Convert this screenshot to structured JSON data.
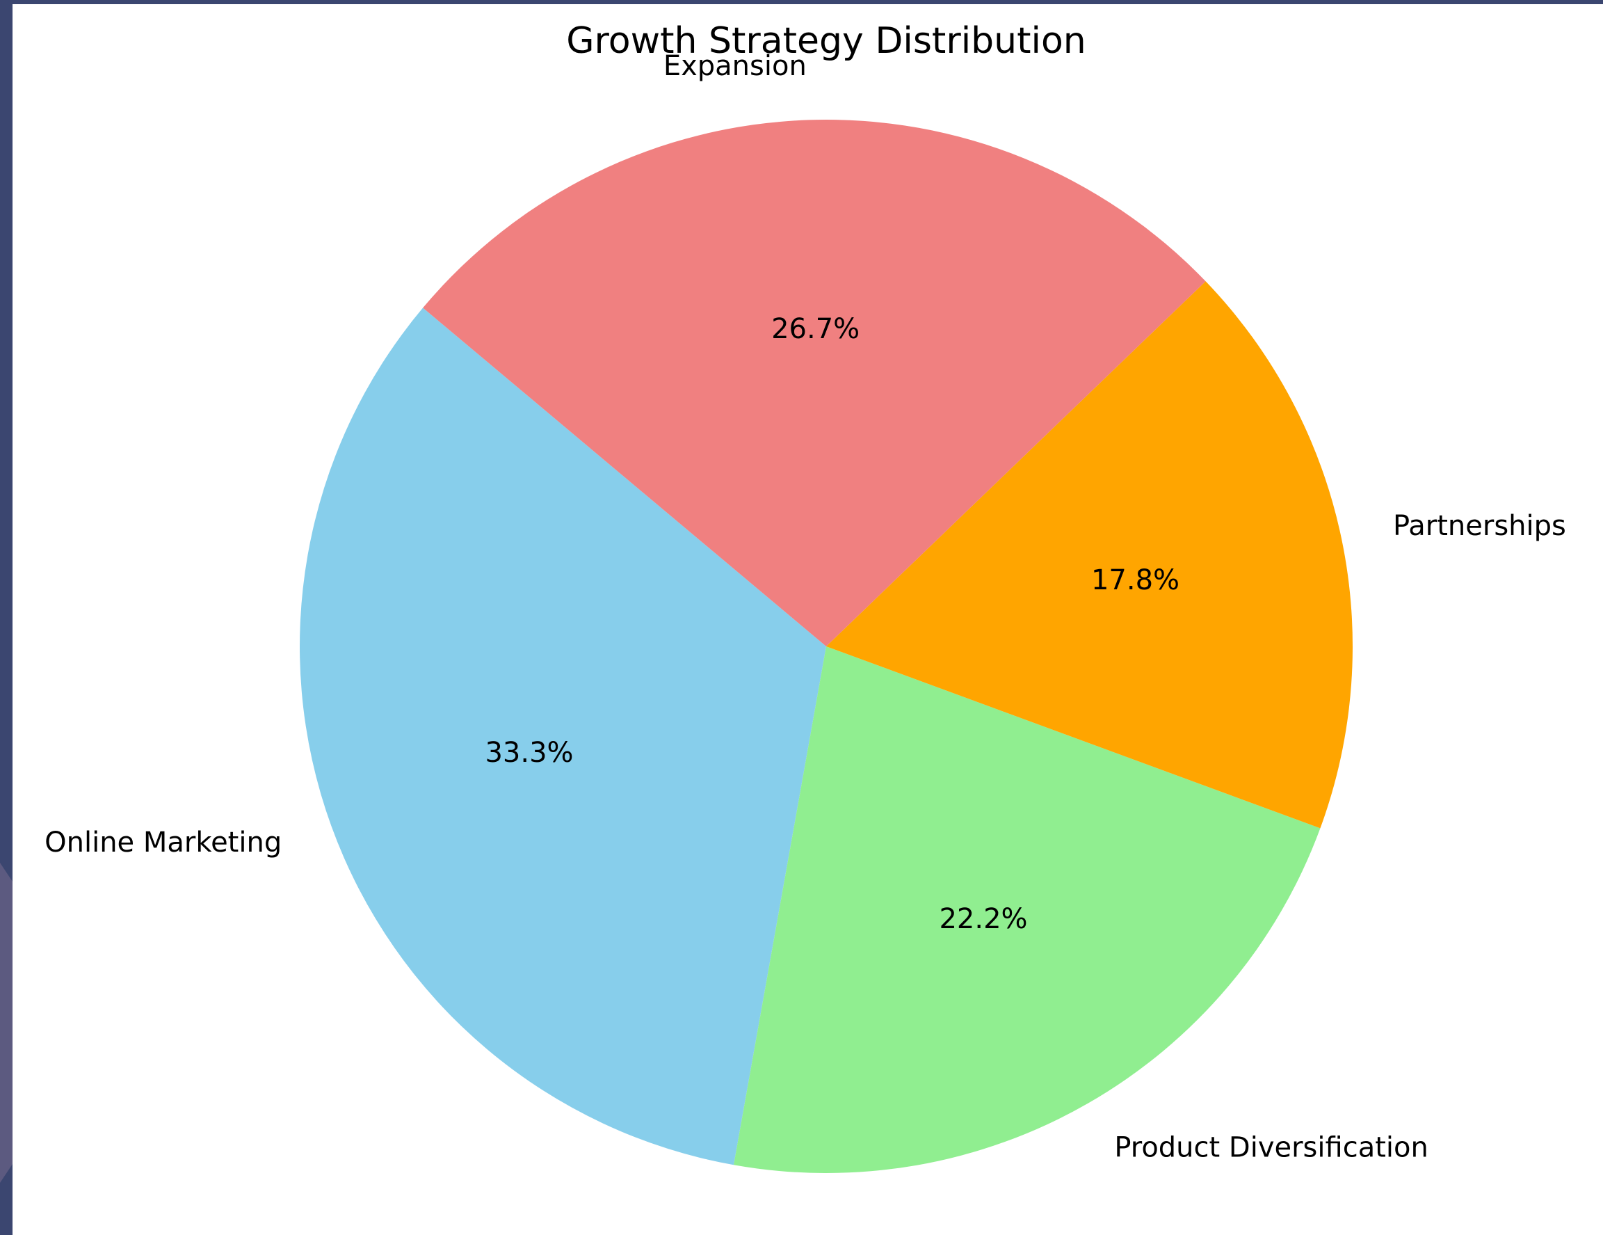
{
  "chart_data": {
    "type": "pie",
    "title": "Growth Strategy Distribution",
    "categories": [
      "Online Marketing",
      "Product Diversification",
      "Partnerships",
      "Expansion"
    ],
    "values": [
      33.3,
      22.2,
      17.8,
      26.7
    ],
    "value_labels": [
      "33.3%",
      "22.2%",
      "17.8%",
      "26.7%"
    ],
    "colors": [
      "#87ceeb",
      "#90ee90",
      "#ffa500",
      "#f08080"
    ],
    "startangle": 140,
    "counterclock": true
  }
}
